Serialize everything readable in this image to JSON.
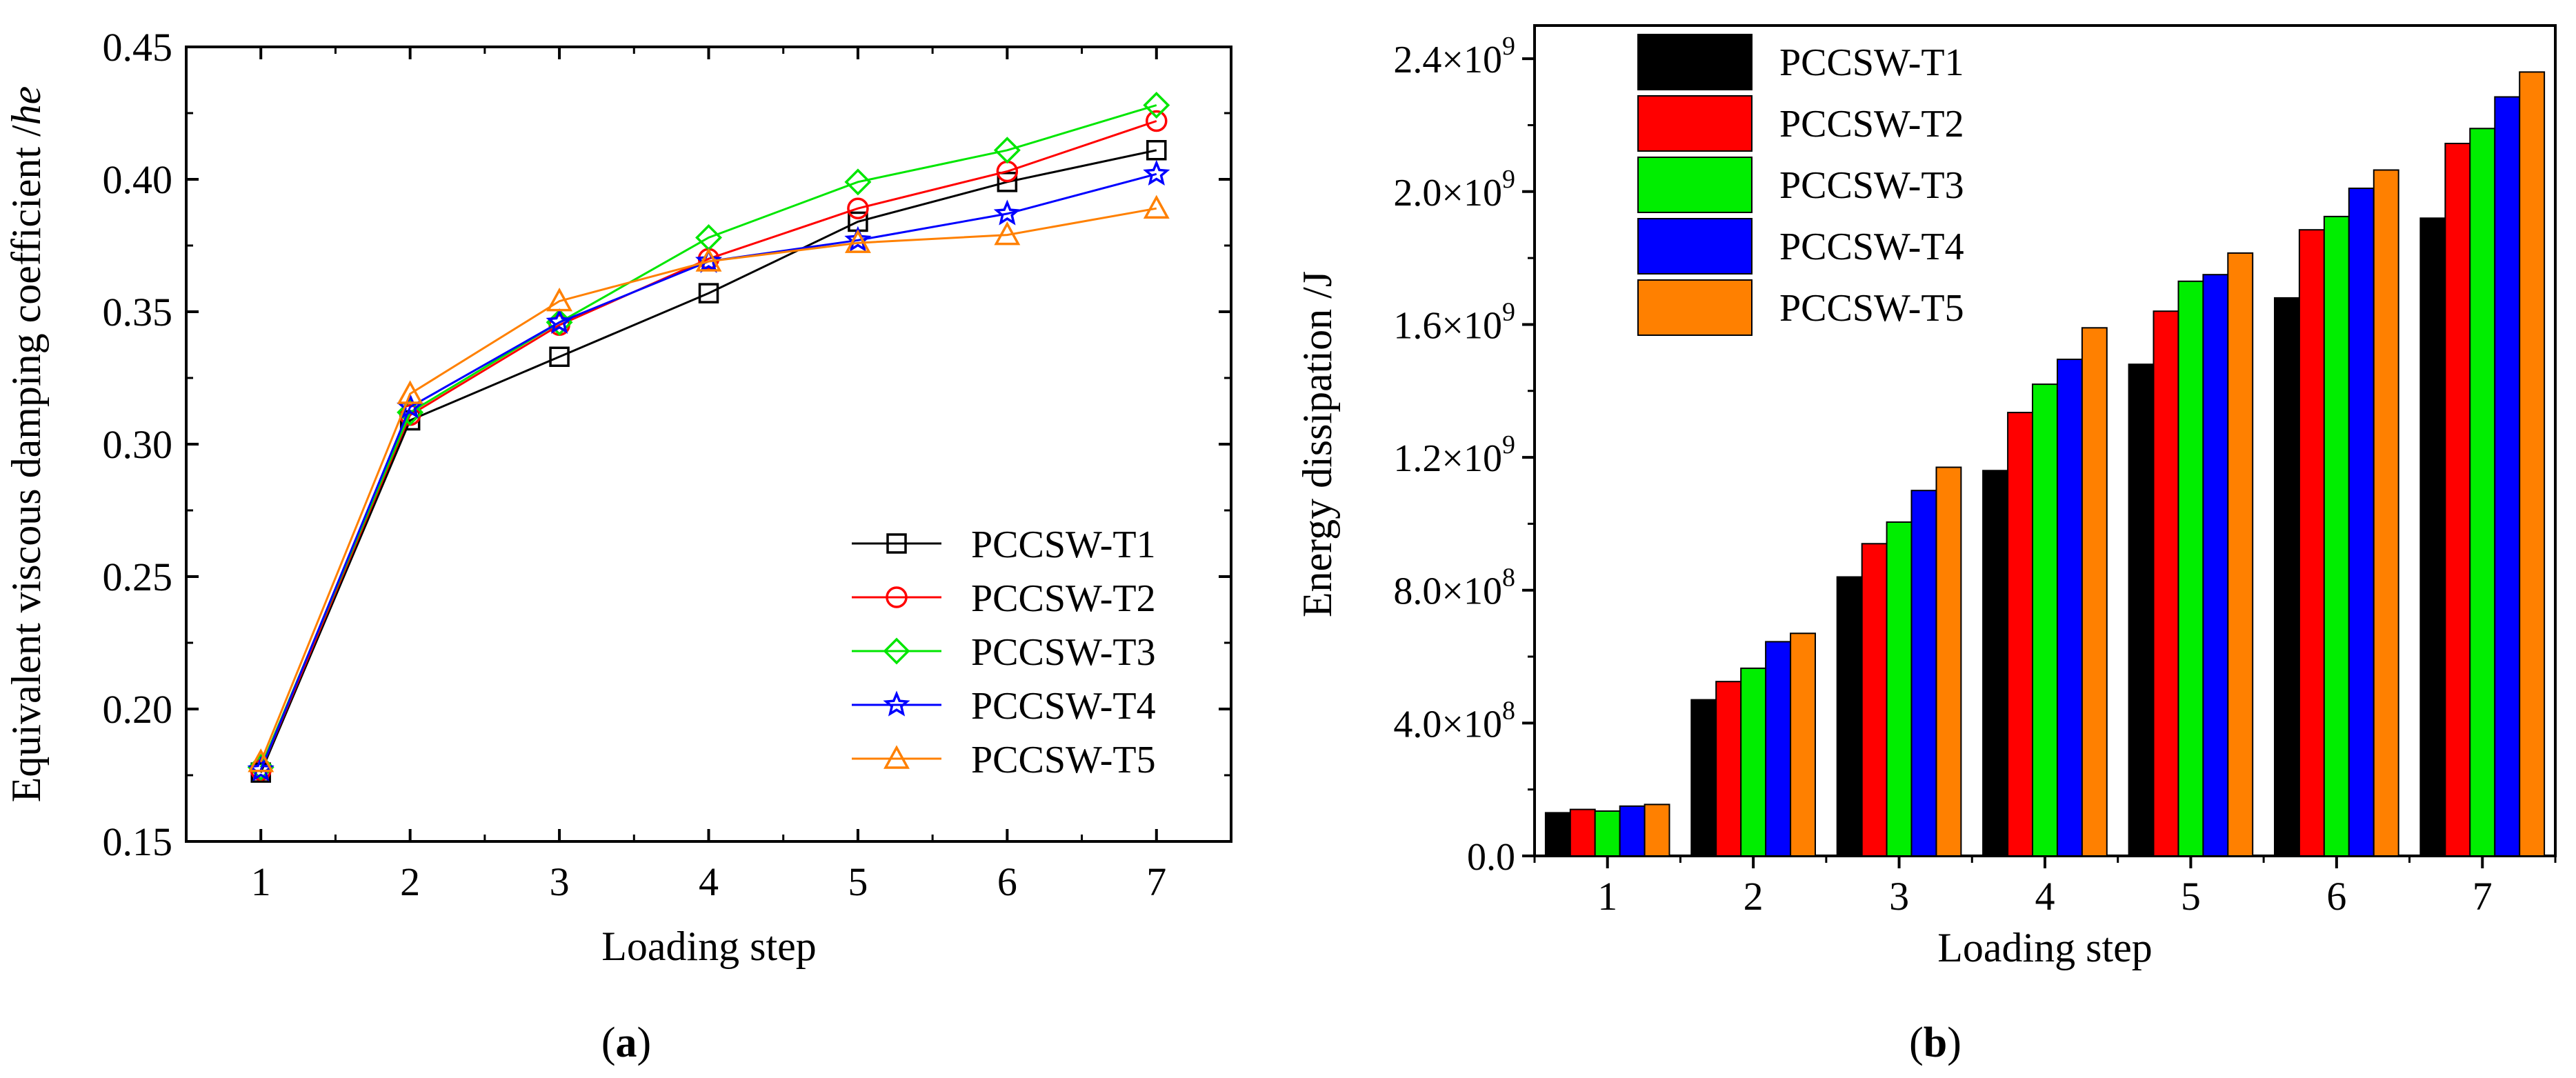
{
  "chart_data": [
    {
      "type": "line",
      "panel_label": "a",
      "xlabel": "Loading step",
      "ylabel": "Equivalent viscous damping coefficient /he",
      "ylabel_prefix": "Equivalent viscous damping coefficient /",
      "ylabel_italic": "he",
      "x": [
        1,
        2,
        3,
        4,
        5,
        6,
        7
      ],
      "x_tick_labels": [
        "1",
        "2",
        "3",
        "4",
        "5",
        "6",
        "7"
      ],
      "xlim": [
        0.5,
        7.5
      ],
      "ylim": [
        0.15,
        0.45
      ],
      "y_ticks": [
        0.15,
        0.2,
        0.25,
        0.3,
        0.35,
        0.4,
        0.45
      ],
      "y_tick_labels": [
        "0.15",
        "0.20",
        "0.25",
        "0.30",
        "0.35",
        "0.40",
        "0.45"
      ],
      "legend_position": "bottom-right",
      "series": [
        {
          "name": "PCCSW-T1",
          "color": "#000000",
          "marker": "square",
          "values": [
            0.176,
            0.309,
            0.333,
            0.357,
            0.384,
            0.399,
            0.411
          ]
        },
        {
          "name": "PCCSW-T2",
          "color": "#ff0000",
          "marker": "circle",
          "values": [
            0.177,
            0.311,
            0.345,
            0.37,
            0.389,
            0.403,
            0.422
          ]
        },
        {
          "name": "PCCSW-T3",
          "color": "#00e600",
          "marker": "diamond",
          "values": [
            0.178,
            0.312,
            0.346,
            0.378,
            0.399,
            0.411,
            0.428
          ]
        },
        {
          "name": "PCCSW-T4",
          "color": "#0000ff",
          "marker": "star",
          "values": [
            0.177,
            0.314,
            0.346,
            0.369,
            0.377,
            0.387,
            0.402
          ]
        },
        {
          "name": "PCCSW-T5",
          "color": "#ff8000",
          "marker": "triangle",
          "values": [
            0.18,
            0.319,
            0.354,
            0.369,
            0.376,
            0.379,
            0.389
          ]
        }
      ]
    },
    {
      "type": "bar",
      "panel_label": "b",
      "xlabel": "Loading step",
      "ylabel": "Energy dissipation /J",
      "categories": [
        "1",
        "2",
        "3",
        "4",
        "5",
        "6",
        "7"
      ],
      "ylim": [
        0,
        2500000000
      ],
      "y_ticks": [
        0,
        400000000,
        800000000,
        1200000000,
        1600000000,
        2000000000,
        2400000000
      ],
      "y_tick_labels": [
        {
          "mantissa": "0.0",
          "exponent": ""
        },
        {
          "mantissa": "4.0×10",
          "exponent": "8"
        },
        {
          "mantissa": "8.0×10",
          "exponent": "8"
        },
        {
          "mantissa": "1.2×10",
          "exponent": "9"
        },
        {
          "mantissa": "1.6×10",
          "exponent": "9"
        },
        {
          "mantissa": "2.0×10",
          "exponent": "9"
        },
        {
          "mantissa": "2.4×10",
          "exponent": "9"
        }
      ],
      "legend_position": "top-left",
      "series": [
        {
          "name": "PCCSW-T1",
          "color": "#000000",
          "values": [
            130000000,
            470000000,
            840000000,
            1160000000,
            1480000000,
            1680000000,
            1920000000
          ]
        },
        {
          "name": "PCCSW-T2",
          "color": "#ff0000",
          "values": [
            140000000,
            525000000,
            940000000,
            1335000000,
            1640000000,
            1885000000,
            2145000000
          ]
        },
        {
          "name": "PCCSW-T3",
          "color": "#00ee00",
          "values": [
            135000000,
            565000000,
            1005000000,
            1420000000,
            1730000000,
            1925000000,
            2190000000
          ]
        },
        {
          "name": "PCCSW-T4",
          "color": "#0000ff",
          "values": [
            150000000,
            645000000,
            1100000000,
            1495000000,
            1750000000,
            2010000000,
            2285000000
          ]
        },
        {
          "name": "PCCSW-T5",
          "color": "#ff8000",
          "values": [
            155000000,
            670000000,
            1170000000,
            1590000000,
            1815000000,
            2065000000,
            2360000000
          ]
        }
      ]
    }
  ]
}
